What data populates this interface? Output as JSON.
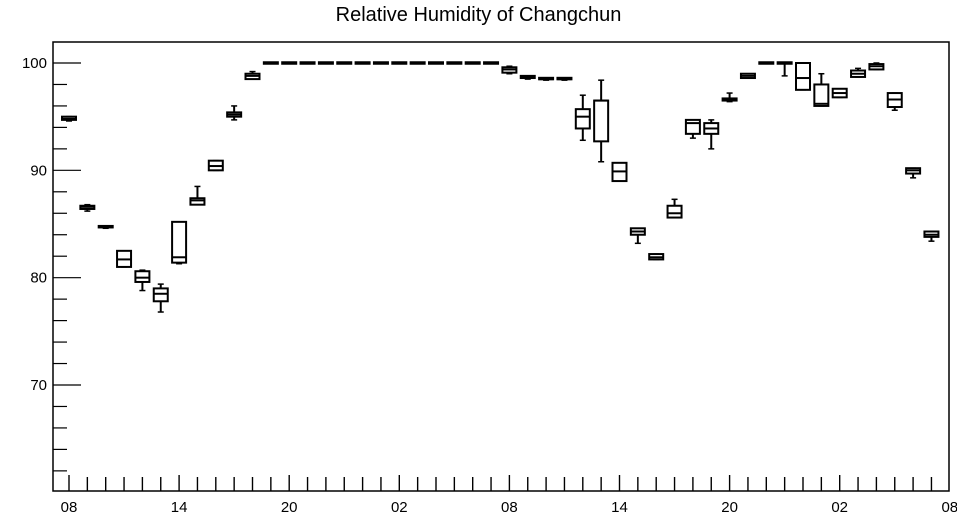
{
  "chart_data": {
    "type": "boxplot",
    "title": "Relative Humidity of Changchun",
    "xlabel": "",
    "ylabel": "",
    "ylim": [
      60,
      102
    ],
    "y_major_ticks": [
      70,
      80,
      90,
      100
    ],
    "y_minor_step": 2,
    "x_tick_labels": [
      "08",
      "14",
      "20",
      "02",
      "08",
      "14",
      "20",
      "02",
      "08"
    ],
    "x_tick_label_positions": [
      0,
      6,
      12,
      18,
      24,
      30,
      36,
      42,
      48
    ],
    "grid": false,
    "legend": "none",
    "boxes": [
      {
        "t": 0,
        "min": 94.6,
        "q1": 94.7,
        "median": 94.8,
        "q3": 95.0,
        "max": 95.0
      },
      {
        "t": 1,
        "min": 86.2,
        "q1": 86.4,
        "median": 86.6,
        "q3": 86.7,
        "max": 86.8
      },
      {
        "t": 2,
        "min": 84.6,
        "q1": 84.65,
        "median": 84.7,
        "q3": 84.75,
        "max": 84.8
      },
      {
        "t": 3,
        "min": 81.0,
        "q1": 81.0,
        "median": 81.7,
        "q3": 82.5,
        "max": 82.5
      },
      {
        "t": 4,
        "min": 78.8,
        "q1": 79.6,
        "median": 80.0,
        "q3": 80.6,
        "max": 80.7
      },
      {
        "t": 5,
        "min": 76.8,
        "q1": 77.8,
        "median": 78.5,
        "q3": 79.0,
        "max": 79.4
      },
      {
        "t": 6,
        "min": 81.3,
        "q1": 81.4,
        "median": 81.9,
        "q3": 85.2,
        "max": 85.2
      },
      {
        "t": 7,
        "min": 86.8,
        "q1": 86.8,
        "median": 87.2,
        "q3": 87.4,
        "max": 88.5
      },
      {
        "t": 8,
        "min": 90.0,
        "q1": 90.0,
        "median": 90.4,
        "q3": 90.9,
        "max": 90.9
      },
      {
        "t": 9,
        "min": 94.7,
        "q1": 95.0,
        "median": 95.2,
        "q3": 95.4,
        "max": 96.0
      },
      {
        "t": 10,
        "min": 98.5,
        "q1": 98.5,
        "median": 98.8,
        "q3": 99.0,
        "max": 99.2
      },
      {
        "t": 11,
        "min": 100.0,
        "q1": 100.0,
        "median": 100.0,
        "q3": 100.0,
        "max": 100.0
      },
      {
        "t": 12,
        "min": 100.0,
        "q1": 100.0,
        "median": 100.0,
        "q3": 100.0,
        "max": 100.0
      },
      {
        "t": 13,
        "min": 100.0,
        "q1": 100.0,
        "median": 100.0,
        "q3": 100.0,
        "max": 100.0
      },
      {
        "t": 14,
        "min": 100.0,
        "q1": 100.0,
        "median": 100.0,
        "q3": 100.0,
        "max": 100.0
      },
      {
        "t": 15,
        "min": 100.0,
        "q1": 100.0,
        "median": 100.0,
        "q3": 100.0,
        "max": 100.0
      },
      {
        "t": 16,
        "min": 100.0,
        "q1": 100.0,
        "median": 100.0,
        "q3": 100.0,
        "max": 100.0
      },
      {
        "t": 17,
        "min": 100.0,
        "q1": 100.0,
        "median": 100.0,
        "q3": 100.0,
        "max": 100.0
      },
      {
        "t": 18,
        "min": 100.0,
        "q1": 100.0,
        "median": 100.0,
        "q3": 100.0,
        "max": 100.0
      },
      {
        "t": 19,
        "min": 100.0,
        "q1": 100.0,
        "median": 100.0,
        "q3": 100.0,
        "max": 100.0
      },
      {
        "t": 20,
        "min": 100.0,
        "q1": 100.0,
        "median": 100.0,
        "q3": 100.0,
        "max": 100.0
      },
      {
        "t": 21,
        "min": 100.0,
        "q1": 100.0,
        "median": 100.0,
        "q3": 100.0,
        "max": 100.0
      },
      {
        "t": 22,
        "min": 100.0,
        "q1": 100.0,
        "median": 100.0,
        "q3": 100.0,
        "max": 100.0
      },
      {
        "t": 23,
        "min": 100.0,
        "q1": 100.0,
        "median": 100.0,
        "q3": 100.0,
        "max": 100.0
      },
      {
        "t": 24,
        "min": 99.0,
        "q1": 99.1,
        "median": 99.4,
        "q3": 99.6,
        "max": 99.7
      },
      {
        "t": 25,
        "min": 98.5,
        "q1": 98.6,
        "median": 98.7,
        "q3": 98.8,
        "max": 98.8
      },
      {
        "t": 26,
        "min": 98.4,
        "q1": 98.45,
        "median": 98.5,
        "q3": 98.55,
        "max": 98.6
      },
      {
        "t": 27,
        "min": 98.4,
        "q1": 98.45,
        "median": 98.5,
        "q3": 98.55,
        "max": 98.6
      },
      {
        "t": 28,
        "min": 92.8,
        "q1": 93.9,
        "median": 95.0,
        "q3": 95.7,
        "max": 97.0
      },
      {
        "t": 29,
        "min": 90.8,
        "q1": 92.7,
        "median": 96.5,
        "q3": 96.5,
        "max": 98.4
      },
      {
        "t": 30,
        "min": 89.0,
        "q1": 89.0,
        "median": 89.9,
        "q3": 90.7,
        "max": 90.7
      },
      {
        "t": 31,
        "min": 83.2,
        "q1": 84.0,
        "median": 84.3,
        "q3": 84.6,
        "max": 84.6
      },
      {
        "t": 32,
        "min": 81.7,
        "q1": 81.7,
        "median": 81.9,
        "q3": 82.2,
        "max": 82.2
      },
      {
        "t": 33,
        "min": 85.6,
        "q1": 85.6,
        "median": 86.0,
        "q3": 86.7,
        "max": 87.3
      },
      {
        "t": 34,
        "min": 93.0,
        "q1": 93.4,
        "median": 94.4,
        "q3": 94.7,
        "max": 94.7
      },
      {
        "t": 35,
        "min": 92.0,
        "q1": 93.4,
        "median": 93.9,
        "q3": 94.4,
        "max": 94.7
      },
      {
        "t": 36,
        "min": 96.4,
        "q1": 96.5,
        "median": 96.6,
        "q3": 96.7,
        "max": 97.2
      },
      {
        "t": 37,
        "min": 98.6,
        "q1": 98.6,
        "median": 98.8,
        "q3": 99.0,
        "max": 99.0
      },
      {
        "t": 38,
        "min": 100.0,
        "q1": 100.0,
        "median": 100.0,
        "q3": 100.0,
        "max": 100.0
      },
      {
        "t": 39,
        "min": 98.8,
        "q1": 100.0,
        "median": 100.0,
        "q3": 100.0,
        "max": 100.0
      },
      {
        "t": 40,
        "min": 97.5,
        "q1": 97.5,
        "median": 98.6,
        "q3": 100.0,
        "max": 100.0
      },
      {
        "t": 41,
        "min": 96.0,
        "q1": 96.0,
        "median": 96.2,
        "q3": 98.0,
        "max": 99.0
      },
      {
        "t": 42,
        "min": 96.8,
        "q1": 96.8,
        "median": 97.2,
        "q3": 97.6,
        "max": 97.6
      },
      {
        "t": 43,
        "min": 98.7,
        "q1": 98.7,
        "median": 99.0,
        "q3": 99.3,
        "max": 99.5
      },
      {
        "t": 44,
        "min": 99.4,
        "q1": 99.4,
        "median": 99.7,
        "q3": 99.9,
        "max": 100.0
      },
      {
        "t": 45,
        "min": 95.6,
        "q1": 95.9,
        "median": 96.6,
        "q3": 97.2,
        "max": 97.2
      },
      {
        "t": 46,
        "min": 89.3,
        "q1": 89.7,
        "median": 90.0,
        "q3": 90.2,
        "max": 90.2
      },
      {
        "t": 47,
        "min": 83.4,
        "q1": 83.8,
        "median": 84.0,
        "q3": 84.3,
        "max": 84.3
      }
    ]
  }
}
